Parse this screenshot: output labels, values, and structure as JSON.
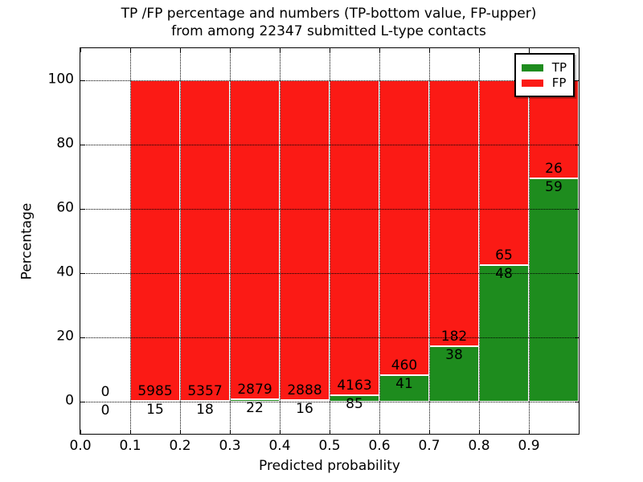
{
  "figure": {
    "title_line1": "TP /FP percentage and numbers (TP-bottom value, FP-upper)",
    "title_line2": "from among 22347 submitted L-type contacts"
  },
  "chart_data": {
    "type": "bar",
    "stacked": true,
    "normalized_to_percent": true,
    "title": "TP /FP percentage and numbers (TP-bottom value, FP-upper) from among 22347 submitted L-type contacts",
    "xlabel": "Predicted probability",
    "ylabel": "Percentage",
    "xlim": [
      0.0,
      1.0
    ],
    "ylim": [
      -10,
      110
    ],
    "grid": true,
    "x_ticks": [
      {
        "value": 0.0,
        "label": "0.0"
      },
      {
        "value": 0.1,
        "label": "0.1"
      },
      {
        "value": 0.2,
        "label": "0.2"
      },
      {
        "value": 0.3,
        "label": "0.3"
      },
      {
        "value": 0.4,
        "label": "0.4"
      },
      {
        "value": 0.5,
        "label": "0.5"
      },
      {
        "value": 0.6,
        "label": "0.6"
      },
      {
        "value": 0.7,
        "label": "0.7"
      },
      {
        "value": 0.8,
        "label": "0.8"
      },
      {
        "value": 0.9,
        "label": "0.9"
      }
    ],
    "y_ticks": [
      {
        "value": 0,
        "label": "0"
      },
      {
        "value": 20,
        "label": "20"
      },
      {
        "value": 40,
        "label": "40"
      },
      {
        "value": 60,
        "label": "60"
      },
      {
        "value": 80,
        "label": "80"
      },
      {
        "value": 100,
        "label": "100"
      }
    ],
    "legend": {
      "position": "upper right",
      "entries": [
        {
          "label": "TP",
          "color": "#1e8c1e"
        },
        {
          "label": "FP",
          "color": "#fb1a15"
        }
      ]
    },
    "total_submitted_contacts": 22347,
    "bars": [
      {
        "x0": 0.0,
        "x1": 0.1,
        "tp_count": 0,
        "fp_count": 0
      },
      {
        "x0": 0.1,
        "x1": 0.2,
        "tp_count": 15,
        "fp_count": 5985
      },
      {
        "x0": 0.2,
        "x1": 0.3,
        "tp_count": 18,
        "fp_count": 5357
      },
      {
        "x0": 0.3,
        "x1": 0.4,
        "tp_count": 22,
        "fp_count": 2879
      },
      {
        "x0": 0.4,
        "x1": 0.5,
        "tp_count": 16,
        "fp_count": 2888
      },
      {
        "x0": 0.5,
        "x1": 0.6,
        "tp_count": 85,
        "fp_count": 4163
      },
      {
        "x0": 0.6,
        "x1": 0.7,
        "tp_count": 41,
        "fp_count": 460
      },
      {
        "x0": 0.7,
        "x1": 0.8,
        "tp_count": 38,
        "fp_count": 182
      },
      {
        "x0": 0.8,
        "x1": 0.9,
        "tp_count": 48,
        "fp_count": 65
      },
      {
        "x0": 0.9,
        "x1": 1.0,
        "tp_count": 59,
        "fp_count": 26
      }
    ]
  },
  "colors": {
    "tp_green": "#1e8c1e",
    "fp_red": "#fb1a15",
    "grid_line": "#000000",
    "bar_edge": "#ffffff",
    "background": "#ffffff"
  }
}
